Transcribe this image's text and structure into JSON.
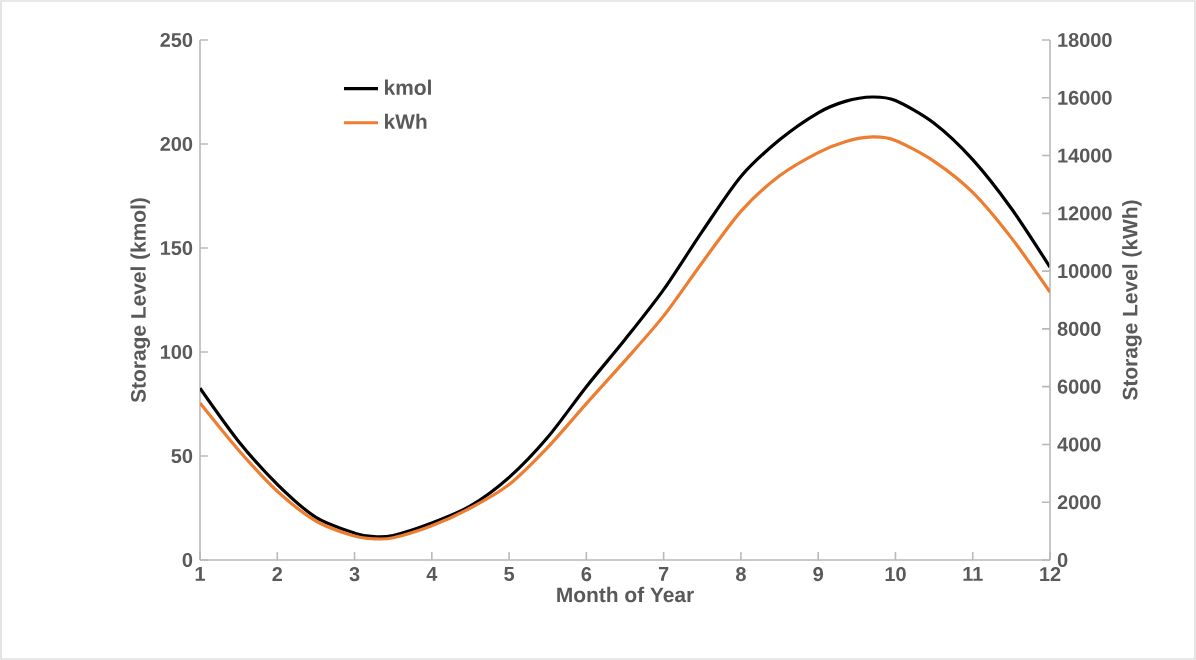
{
  "chart_data": {
    "type": "line",
    "xlabel": "Month of Year",
    "ylabel": "Storage Level (kmol)",
    "y2label": "Storage Level (kWh)",
    "x": [
      1,
      1.5,
      2,
      2.5,
      3,
      3.25,
      3.5,
      4,
      4.5,
      5,
      5.5,
      6,
      6.5,
      7,
      7.5,
      8,
      8.5,
      9,
      9.35,
      9.7,
      10,
      10.5,
      11,
      11.5,
      12
    ],
    "series": [
      {
        "name": "kmol",
        "color": "#000000",
        "values": [
          82.6,
          57,
          36.4,
          20.5,
          12.9,
          11.2,
          11.8,
          17.8,
          26,
          39.7,
          59,
          83.3,
          106,
          130,
          158,
          184.4,
          202,
          215,
          220.5,
          222.6,
          220.9,
          210,
          192.5,
          169,
          140.8
        ]
      },
      {
        "name": "kWh",
        "color": "#ed7d31",
        "axis": "y2",
        "values": [
          5434,
          3800,
          2379,
          1350,
          828,
          734,
          770,
          1186,
          1800,
          2614,
          3900,
          5414,
          6900,
          8450,
          10300,
          12069,
          13300,
          14103,
          14480,
          14644,
          14524,
          13800,
          12724,
          11150,
          9276
        ]
      }
    ],
    "xlim": [
      1,
      12
    ],
    "xticks": [
      1,
      2,
      3,
      4,
      5,
      6,
      7,
      8,
      9,
      10,
      11,
      12
    ],
    "ylim": [
      0,
      250
    ],
    "yticks": [
      0,
      50,
      100,
      150,
      200,
      250
    ],
    "y2lim": [
      0,
      18000
    ],
    "y2ticks": [
      0,
      2000,
      4000,
      6000,
      8000,
      10000,
      12000,
      14000,
      16000,
      18000
    ],
    "legend": "top left"
  }
}
